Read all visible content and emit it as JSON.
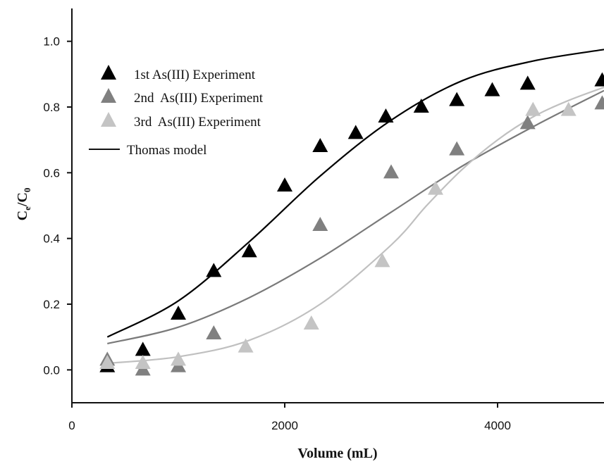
{
  "chart_data": {
    "type": "scatter",
    "title": "",
    "xlabel": "Volume (mL)",
    "ylabel_main": "C",
    "ylabel_sub1": "e",
    "ylabel_sep": "/C",
    "ylabel_sub2": "0",
    "xlim": [
      0,
      5000
    ],
    "ylim": [
      -0.1,
      1.1
    ],
    "xticks": [
      0,
      2000,
      4000
    ],
    "yticks": [
      0.0,
      0.2,
      0.4,
      0.6,
      0.8,
      1.0
    ],
    "xtick_labels": [
      "0",
      "2000",
      "4000"
    ],
    "ytick_labels": [
      "0.0",
      "0.2",
      "0.4",
      "0.6",
      "0.8",
      "1.0"
    ],
    "grid": false,
    "legend_position": "top-left",
    "series": [
      {
        "name": "1st As(III) Experiment",
        "color": "#000000",
        "marker": "triangle",
        "x": [
          333,
          667,
          1000,
          1333,
          1667,
          2000,
          2333,
          2667,
          2950,
          3283,
          3617,
          3950,
          4283,
          4983
        ],
        "y": [
          0.01,
          0.06,
          0.17,
          0.3,
          0.36,
          0.56,
          0.68,
          0.72,
          0.77,
          0.8,
          0.82,
          0.85,
          0.87,
          0.88
        ]
      },
      {
        "name": "2nd  As(III) Experiment",
        "color": "#808080",
        "marker": "triangle",
        "x": [
          333,
          667,
          1000,
          1333,
          2333,
          3000,
          3617,
          4283,
          4983
        ],
        "y": [
          0.03,
          0.0,
          0.01,
          0.11,
          0.44,
          0.6,
          0.67,
          0.75,
          0.81
        ]
      },
      {
        "name": "3rd  As(III) Experiment",
        "color": "#c4c4c4",
        "marker": "triangle",
        "x": [
          333,
          667,
          1000,
          1633,
          2250,
          2917,
          3417,
          4333,
          4667
        ],
        "y": [
          0.02,
          0.02,
          0.03,
          0.07,
          0.14,
          0.33,
          0.55,
          0.79,
          0.79
        ]
      }
    ],
    "model": {
      "name": "Thomas model",
      "color": "#111111",
      "curves": [
        {
          "series": "1st As(III) Experiment",
          "color": "#000000",
          "x": [
            333,
            1000,
            1667,
            2333,
            3000,
            3667,
            4333,
            5000
          ],
          "y": [
            0.1,
            0.21,
            0.39,
            0.59,
            0.76,
            0.88,
            0.94,
            0.975
          ]
        },
        {
          "series": "2nd  As(III) Experiment",
          "color": "#7a7a7a",
          "x": [
            333,
            1000,
            1667,
            2333,
            3000,
            3667,
            4333,
            5000
          ],
          "y": [
            0.08,
            0.13,
            0.22,
            0.34,
            0.48,
            0.62,
            0.74,
            0.85
          ]
        },
        {
          "series": "3rd  As(III) Experiment",
          "color": "#c0c0c0",
          "x": [
            333,
            1000,
            1667,
            2333,
            3000,
            3333,
            3667,
            4000,
            4333,
            4667,
            5000
          ],
          "y": [
            0.02,
            0.04,
            0.09,
            0.2,
            0.38,
            0.5,
            0.61,
            0.7,
            0.77,
            0.82,
            0.86
          ]
        }
      ]
    }
  }
}
